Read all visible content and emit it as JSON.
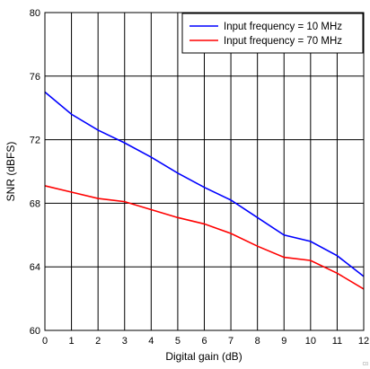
{
  "chart_data": {
    "type": "line",
    "xlabel": "Digital gain (dB)",
    "ylabel": "SNR (dBFS)",
    "xlim": [
      0,
      12
    ],
    "ylim": [
      60,
      80
    ],
    "x_ticks": [
      0,
      1,
      2,
      3,
      4,
      5,
      6,
      7,
      8,
      9,
      10,
      11,
      12
    ],
    "y_ticks": [
      60,
      64,
      68,
      72,
      76,
      80
    ],
    "grid": true,
    "legend_position": "top-right",
    "series": [
      {
        "name": "Input frequency = 10 MHz",
        "color": "#0000ff",
        "x": [
          0,
          1,
          2,
          3,
          4,
          5,
          6,
          7,
          8,
          9,
          10,
          11,
          12
        ],
        "y": [
          75.0,
          73.6,
          72.6,
          71.8,
          70.9,
          69.9,
          69.0,
          68.2,
          67.1,
          66.0,
          65.6,
          64.7,
          63.4
        ]
      },
      {
        "name": "Input frequency = 70 MHz",
        "color": "#ff0000",
        "x": [
          0,
          1,
          2,
          3,
          4,
          5,
          6,
          7,
          8,
          9,
          10,
          11,
          12
        ],
        "y": [
          69.1,
          68.7,
          68.3,
          68.1,
          67.6,
          67.1,
          66.7,
          66.1,
          65.3,
          64.6,
          64.4,
          63.6,
          62.6
        ]
      }
    ]
  },
  "corner_note": "C0"
}
